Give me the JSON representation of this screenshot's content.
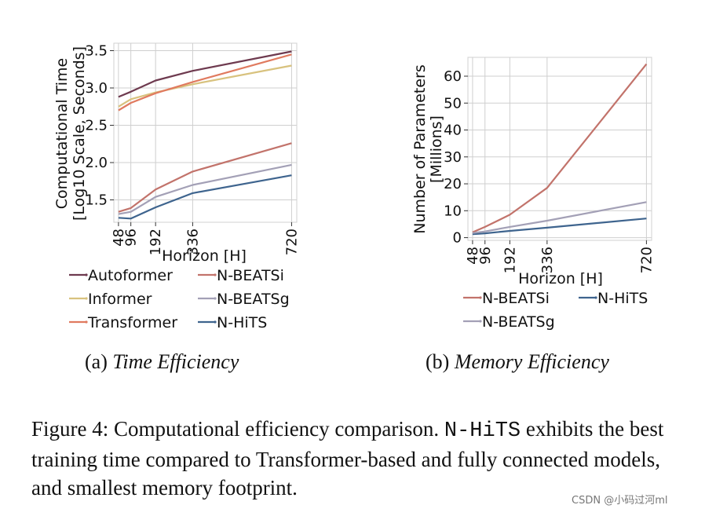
{
  "chart_data": [
    {
      "type": "line",
      "x": [
        48,
        96,
        192,
        336,
        720
      ],
      "xlabel": "Horizon [H]",
      "ylabel_line1": "Computational Time",
      "ylabel_line2": "[Log10 Scale, Seconds]",
      "ylim": [
        1.2,
        3.6
      ],
      "yticks": [
        "1.5",
        "2.0",
        "2.5",
        "3.0",
        "3.5"
      ],
      "xticks": [
        "48",
        "96",
        "192",
        "336",
        "720"
      ],
      "series": [
        {
          "name": "Autoformer",
          "color": "#6e3a4f",
          "values": [
            2.88,
            2.95,
            3.1,
            3.23,
            3.49
          ]
        },
        {
          "name": "Informer",
          "color": "#d8c27e",
          "values": [
            2.75,
            2.85,
            2.94,
            3.05,
            3.3
          ]
        },
        {
          "name": "Transformer",
          "color": "#e07a5f",
          "values": [
            2.7,
            2.8,
            2.93,
            3.08,
            3.45
          ]
        },
        {
          "name": "N-BEATSi",
          "color": "#c2736b",
          "values": [
            1.34,
            1.39,
            1.64,
            1.88,
            2.26
          ]
        },
        {
          "name": "N-BEATSg",
          "color": "#a3a0b6",
          "values": [
            1.31,
            1.34,
            1.54,
            1.7,
            1.97
          ]
        },
        {
          "name": "N-HiTS",
          "color": "#3e648e",
          "values": [
            1.26,
            1.25,
            1.4,
            1.59,
            1.83
          ]
        }
      ],
      "caption_label": "(a)",
      "caption_title": "Time Efficiency"
    },
    {
      "type": "line",
      "x": [
        48,
        96,
        192,
        336,
        720
      ],
      "xlabel": "Horizon [H]",
      "ylabel_line1": "Number of Parameters",
      "ylabel_line2": "[Millions]",
      "ylim": [
        -1,
        67
      ],
      "yticks": [
        "0",
        "10",
        "20",
        "30",
        "40",
        "50",
        "60"
      ],
      "xticks": [
        "48",
        "96",
        "192",
        "336",
        "720"
      ],
      "series": [
        {
          "name": "N-BEATSi",
          "color": "#c2736b",
          "values": [
            2.0,
            4.0,
            8.5,
            18.5,
            64.5
          ]
        },
        {
          "name": "N-HiTS",
          "color": "#3e648e",
          "values": [
            1.3,
            1.6,
            2.5,
            3.7,
            7.1
          ]
        },
        {
          "name": "N-BEATSg",
          "color": "#a3a0b6",
          "values": [
            1.7,
            2.3,
            4.0,
            6.3,
            13.2
          ]
        }
      ],
      "caption_label": "(b)",
      "caption_title": "Memory Efficiency"
    }
  ],
  "figure_caption": {
    "prefix": "Figure 4: Computational efficiency comparison.",
    "model": "N-HiTS",
    "rest": "exhibits the best training time compared to Transformer-based and fully connected models, and smallest memory footprint."
  },
  "watermark": "CSDN @小码过河ml"
}
